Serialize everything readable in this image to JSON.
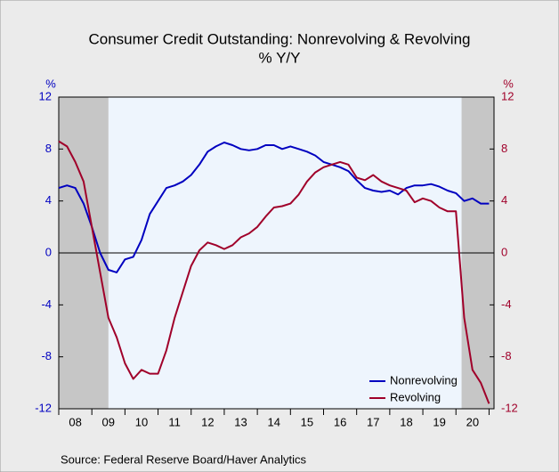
{
  "chart_data": {
    "type": "line",
    "title": "Consumer Credit Outstanding: Nonrevolving & Revolving",
    "subtitle": "% Y/Y",
    "y_unit": "%",
    "y2_unit": "%",
    "source": "Source:  Federal Reserve Board/Haver Analytics",
    "x": [
      2008,
      2008.25,
      2008.5,
      2008.75,
      2009,
      2009.25,
      2009.5,
      2009.75,
      2010,
      2010.25,
      2010.5,
      2010.75,
      2011,
      2011.25,
      2011.5,
      2011.75,
      2012,
      2012.25,
      2012.5,
      2012.75,
      2013,
      2013.25,
      2013.5,
      2013.75,
      2014,
      2014.25,
      2014.5,
      2014.75,
      2015,
      2015.25,
      2015.5,
      2015.75,
      2016,
      2016.25,
      2016.5,
      2016.75,
      2017,
      2017.25,
      2017.5,
      2017.75,
      2018,
      2018.25,
      2018.5,
      2018.75,
      2019,
      2019.25,
      2019.5,
      2019.75,
      2020,
      2020.25,
      2020.5,
      2020.75,
      2021
    ],
    "series": [
      {
        "name": "Nonrevolving",
        "color": "#0000c0",
        "values": [
          5.0,
          5.2,
          5.0,
          3.8,
          2.0,
          0.0,
          -1.3,
          -1.5,
          -0.5,
          -0.3,
          1.0,
          3.0,
          4.0,
          5.0,
          5.2,
          5.5,
          6.0,
          6.8,
          7.8,
          8.2,
          8.5,
          8.3,
          8.0,
          7.9,
          8.0,
          8.3,
          8.3,
          8.0,
          8.2,
          8.0,
          7.8,
          7.5,
          7.0,
          6.8,
          6.6,
          6.3,
          5.6,
          5.0,
          4.8,
          4.7,
          4.8,
          4.5,
          5.0,
          5.2,
          5.2,
          5.3,
          5.1,
          4.8,
          4.6,
          4.0,
          4.2,
          3.8,
          3.8
        ]
      },
      {
        "name": "Revolving",
        "color": "#a0002a",
        "axis": "y2",
        "values": [
          8.6,
          8.2,
          7.0,
          5.5,
          2.0,
          -1.5,
          -5.0,
          -6.5,
          -8.5,
          -9.7,
          -9.0,
          -9.3,
          -9.3,
          -7.5,
          -5.0,
          -3.0,
          -1.0,
          0.2,
          0.8,
          0.6,
          0.3,
          0.6,
          1.2,
          1.5,
          2.0,
          2.8,
          3.5,
          3.6,
          3.8,
          4.5,
          5.5,
          6.2,
          6.6,
          6.8,
          7.0,
          6.8,
          5.8,
          5.6,
          6.0,
          5.5,
          5.2,
          5.0,
          4.8,
          3.9,
          4.2,
          4.0,
          3.5,
          3.2,
          3.2,
          -5.0,
          -9.0,
          -10.0,
          -11.6
        ]
      }
    ],
    "shaded_periods": [
      [
        2008,
        2009.5
      ],
      [
        2020.17,
        2021.15
      ]
    ],
    "xlim": [
      2008,
      2021.15
    ],
    "xticks": [
      2008,
      2009,
      2010,
      2011,
      2012,
      2013,
      2014,
      2015,
      2016,
      2017,
      2018,
      2019,
      2020,
      2021
    ],
    "xtick_labels": [
      {
        "value": 2008.5,
        "label": "08"
      },
      {
        "value": 2009.5,
        "label": "09"
      },
      {
        "value": 2010.5,
        "label": "10"
      },
      {
        "value": 2011.5,
        "label": "11"
      },
      {
        "value": 2012.5,
        "label": "12"
      },
      {
        "value": 2013.5,
        "label": "13"
      },
      {
        "value": 2014.5,
        "label": "14"
      },
      {
        "value": 2015.5,
        "label": "15"
      },
      {
        "value": 2016.5,
        "label": "16"
      },
      {
        "value": 2017.5,
        "label": "17"
      },
      {
        "value": 2018.5,
        "label": "18"
      },
      {
        "value": 2019.5,
        "label": "19"
      },
      {
        "value": 2020.5,
        "label": "20"
      }
    ],
    "ylim": [
      -12,
      12
    ],
    "yticks": [
      -12,
      -8,
      -4,
      0,
      4,
      8,
      12
    ],
    "y2lim": [
      -12,
      12
    ],
    "y2ticks": [
      -12,
      -8,
      -4,
      0,
      4,
      8,
      12
    ],
    "legend": "lower right",
    "grid": false
  }
}
